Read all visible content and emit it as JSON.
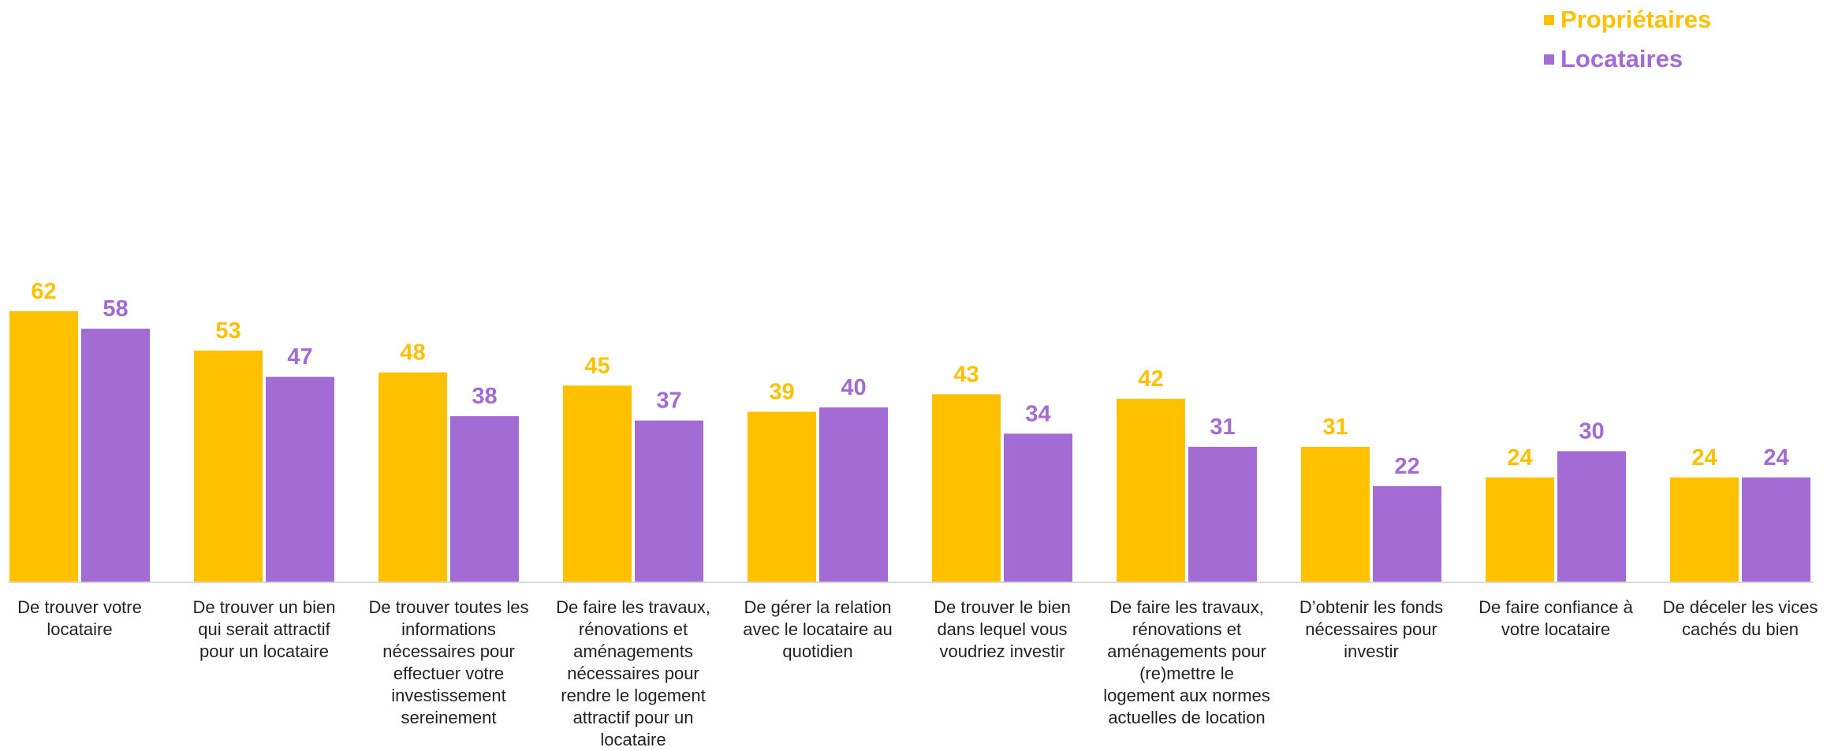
{
  "legend": {
    "owners": "Propriétaires",
    "tenants": "Locataires"
  },
  "colors": {
    "owners": "#FFC000",
    "tenants": "#A36CD4"
  },
  "chart_data": {
    "type": "bar",
    "title": "",
    "xlabel": "",
    "ylabel": "",
    "legend_position": "top-right",
    "grid": false,
    "ylim": [
      0,
      100
    ],
    "categories": [
      [
        "De trouver votre",
        "locataire"
      ],
      [
        "De trouver un bien",
        "qui serait attractif",
        "pour un locataire"
      ],
      [
        "De trouver toutes les",
        "informations",
        "nécessaires pour",
        "effectuer votre",
        "investissement",
        "sereinement"
      ],
      [
        "De faire les travaux,",
        "rénovations et",
        "aménagements",
        "nécessaires pour",
        "rendre le logement",
        "attractif pour un",
        "locataire"
      ],
      [
        "De gérer la relation",
        "avec le locataire au",
        "quotidien"
      ],
      [
        "De trouver le bien",
        "dans lequel vous",
        "voudriez investir"
      ],
      [
        "De faire les travaux,",
        "rénovations et",
        "aménagements pour",
        "(re)mettre le",
        "logement aux normes",
        "actuelles de location"
      ],
      [
        "D’obtenir les fonds",
        "nécessaires pour",
        "investir"
      ],
      [
        "De faire confiance à",
        "votre locataire"
      ],
      [
        "De déceler les vices",
        "cachés du bien"
      ]
    ],
    "series": [
      {
        "name": "Propriétaires",
        "values": [
          62,
          53,
          48,
          45,
          39,
          43,
          42,
          31,
          24,
          24
        ]
      },
      {
        "name": "Locataires",
        "values": [
          58,
          47,
          38,
          37,
          40,
          34,
          31,
          22,
          30,
          24
        ]
      }
    ]
  }
}
